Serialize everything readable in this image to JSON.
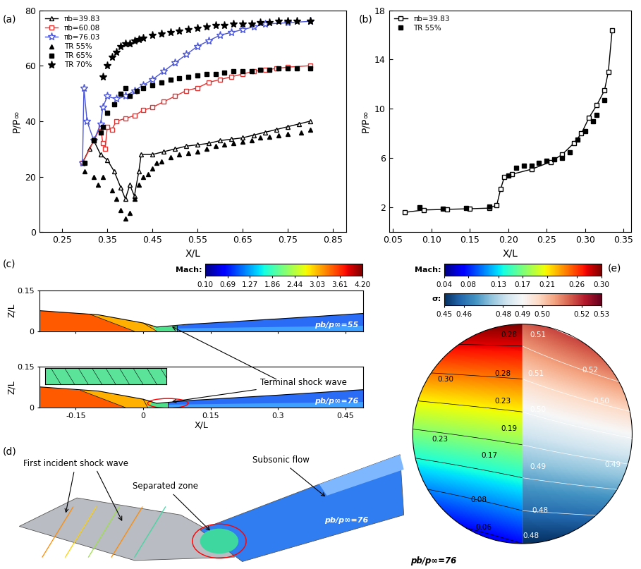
{
  "chart_data": [
    {
      "type": "line",
      "title": "(a)",
      "x_label": "X/L",
      "y_label": "P/P∞",
      "xlim": [
        0.2,
        0.88
      ],
      "xticks": [
        0.25,
        0.35,
        0.45,
        0.55,
        0.65,
        0.75,
        0.85
      ],
      "ylim": [
        0,
        80
      ],
      "yticks": [
        0,
        20,
        40,
        60,
        80
      ],
      "legend": "upper left",
      "series": [
        {
          "name": "πb=39.83",
          "type": "line",
          "color": "#000000",
          "marker": "triangle_open",
          "line_style": "solid",
          "x": [
            0.295,
            0.31,
            0.32,
            0.335,
            0.35,
            0.365,
            0.38,
            0.39,
            0.4,
            0.41,
            0.42,
            0.425,
            0.45,
            0.475,
            0.5,
            0.525,
            0.55,
            0.575,
            0.6,
            0.625,
            0.65,
            0.675,
            0.7,
            0.725,
            0.75,
            0.775,
            0.8
          ],
          "values": [
            25,
            30,
            33,
            28,
            26,
            22,
            16,
            12,
            17,
            13,
            22,
            28,
            28,
            29,
            30,
            31,
            31.5,
            32,
            33,
            33.5,
            34,
            35,
            36,
            37,
            38,
            39,
            40
          ]
        },
        {
          "name": "πb=60.08",
          "type": "line",
          "color": "#e8312f",
          "marker": "square_open",
          "line_style": "solid",
          "x": [
            0.295,
            0.32,
            0.335,
            0.34,
            0.345,
            0.35,
            0.36,
            0.37,
            0.39,
            0.41,
            0.43,
            0.45,
            0.475,
            0.5,
            0.525,
            0.55,
            0.575,
            0.6,
            0.625,
            0.65,
            0.675,
            0.7,
            0.725,
            0.75,
            0.8
          ],
          "values": [
            25,
            33,
            38,
            32,
            30,
            38,
            37,
            40,
            41,
            42,
            44,
            45,
            47,
            49,
            51,
            52,
            54,
            55,
            56,
            57,
            58,
            58.5,
            59,
            59.5,
            60
          ]
        },
        {
          "name": "πb=76.03",
          "type": "line",
          "color": "#4a55d8",
          "marker": "star_open",
          "line_style": "solid",
          "x": [
            0.295,
            0.298,
            0.305,
            0.32,
            0.335,
            0.34,
            0.35,
            0.37,
            0.39,
            0.41,
            0.43,
            0.45,
            0.475,
            0.5,
            0.525,
            0.55,
            0.575,
            0.6,
            0.625,
            0.65,
            0.675,
            0.7,
            0.75,
            0.8
          ],
          "values": [
            25,
            52,
            40,
            33,
            39,
            45,
            49,
            48,
            49,
            51,
            53,
            55,
            58,
            61,
            64,
            67,
            69,
            71,
            72,
            73,
            74,
            75,
            75.5,
            76
          ]
        },
        {
          "name": "TR 55%",
          "type": "scatter",
          "color": "#000000",
          "marker": "triangle",
          "line_style": "none",
          "x": [
            0.3,
            0.32,
            0.33,
            0.34,
            0.36,
            0.37,
            0.38,
            0.39,
            0.4,
            0.41,
            0.42,
            0.43,
            0.44,
            0.45,
            0.46,
            0.47,
            0.49,
            0.51,
            0.53,
            0.55,
            0.57,
            0.59,
            0.61,
            0.63,
            0.65,
            0.67,
            0.69,
            0.71,
            0.73,
            0.75,
            0.78,
            0.8
          ],
          "values": [
            22,
            20,
            17,
            20,
            15,
            12,
            8,
            5,
            7,
            12,
            17,
            20,
            21,
            23,
            25,
            25.5,
            27,
            28,
            28.5,
            29,
            30,
            31,
            31.5,
            32,
            32.5,
            33,
            34,
            34.5,
            35,
            35.5,
            36,
            37
          ]
        },
        {
          "name": "TR 65%",
          "type": "scatter",
          "color": "#000000",
          "marker": "square",
          "line_style": "none",
          "x": [
            0.3,
            0.32,
            0.335,
            0.34,
            0.35,
            0.365,
            0.38,
            0.39,
            0.4,
            0.415,
            0.43,
            0.45,
            0.47,
            0.49,
            0.51,
            0.53,
            0.55,
            0.57,
            0.59,
            0.61,
            0.63,
            0.65,
            0.67,
            0.69,
            0.71,
            0.73,
            0.75,
            0.77,
            0.8
          ],
          "values": [
            25,
            33,
            36,
            38,
            43,
            46,
            50,
            52,
            49,
            51,
            52,
            53,
            54,
            55,
            55.5,
            56,
            56.5,
            57,
            57,
            57.5,
            58,
            58,
            58,
            58.5,
            58.5,
            59,
            59,
            59,
            59
          ]
        },
        {
          "name": "TR 70%",
          "type": "scatter",
          "color": "#000000",
          "marker": "star",
          "line_style": "none",
          "x": [
            0.34,
            0.35,
            0.36,
            0.37,
            0.38,
            0.39,
            0.4,
            0.41,
            0.42,
            0.43,
            0.45,
            0.47,
            0.49,
            0.51,
            0.53,
            0.55,
            0.57,
            0.59,
            0.61,
            0.63,
            0.65,
            0.67,
            0.69,
            0.71,
            0.73,
            0.75,
            0.77,
            0.8
          ],
          "values": [
            56,
            60,
            63,
            65,
            67,
            68,
            68,
            69,
            69.5,
            70,
            71,
            71.5,
            72,
            72.5,
            73,
            73.5,
            74,
            74.5,
            74.5,
            75,
            75,
            75,
            75.5,
            75.5,
            76,
            76,
            76,
            76
          ]
        }
      ]
    },
    {
      "type": "line",
      "title": "(b)",
      "x_label": "X/L",
      "y_label": "P/P∞",
      "xlim": [
        0.045,
        0.36
      ],
      "xticks": [
        0.05,
        {
          "value": 0.1,
          "label": "0.10"
        },
        0.15,
        {
          "value": 0.2,
          "label": "0.20"
        },
        0.25,
        {
          "value": 0.3,
          "label": "0.30"
        },
        0.35
      ],
      "ylim": [
        0,
        18
      ],
      "yticks": [
        2,
        6,
        10,
        14,
        18
      ],
      "legend": "upper left",
      "series": [
        {
          "name": "πb=39.83",
          "type": "line",
          "color": "#000000",
          "marker": "square_open",
          "line_style": "solid",
          "x": [
            0.065,
            0.09,
            0.12,
            0.15,
            0.175,
            0.185,
            0.19,
            0.195,
            0.205,
            0.23,
            0.255,
            0.27,
            0.285,
            0.295,
            0.305,
            0.315,
            0.325,
            0.33,
            0.335
          ],
          "values": [
            1.6,
            1.8,
            1.85,
            1.9,
            1.95,
            2.2,
            3.5,
            4.5,
            4.7,
            5.1,
            5.7,
            6.3,
            7.2,
            8.0,
            9.3,
            10.3,
            11.5,
            13,
            16.4
          ]
        },
        {
          "name": "TR 55%",
          "type": "scatter",
          "color": "#000000",
          "marker": "square",
          "line_style": "none",
          "x": [
            0.085,
            0.115,
            0.145,
            0.175,
            0.2,
            0.21,
            0.22,
            0.23,
            0.24,
            0.25,
            0.26,
            0.27,
            0.28,
            0.29,
            0.3,
            0.31,
            0.315,
            0.325
          ],
          "values": [
            2.0,
            1.9,
            1.95,
            2.05,
            4.6,
            5.2,
            5.4,
            5.4,
            5.6,
            5.8,
            5.9,
            6.0,
            6.5,
            7.5,
            8.2,
            9.0,
            9.5,
            10.7
          ]
        }
      ]
    },
    {
      "type": "contour",
      "title": "(c)",
      "x_label": "X/L",
      "y_label": "Z/L",
      "xlim": [
        -0.23,
        0.49
      ],
      "xticks": [
        -0.15,
        0,
        0.15,
        0.3,
        0.45
      ],
      "ylim": [
        0,
        0.15
      ],
      "yticks": [
        0,
        0.15
      ],
      "colorbar": {
        "label": "Mach:",
        "range": [
          0.1,
          4.2
        ],
        "ticks": [
          {
            "value": 0.1,
            "label": "0.10"
          },
          0.69,
          1.27,
          1.86,
          2.44,
          3.03,
          3.61,
          {
            "value": 4.2,
            "label": "4.20"
          }
        ]
      },
      "subplots": [
        {
          "label": "pb/p∞=55"
        },
        {
          "label": "pb/p∞=76"
        }
      ],
      "annotation": "Terminal shock wave"
    },
    {
      "type": "diagram",
      "title": "(d)",
      "labels": {
        "shock": "First incident shock wave",
        "separated": "Separated zone",
        "subsonic": "Subsonic flow",
        "condition": "pb/p∞=76"
      }
    },
    {
      "type": "disk",
      "title": "(e)",
      "colorbars": [
        {
          "label": "Mach:",
          "range": [
            0.04,
            0.3
          ],
          "ticks": [
            0.04,
            0.08,
            0.13,
            0.17,
            0.21,
            0.26,
            {
              "value": 0.3,
              "label": "0.30"
            }
          ]
        },
        {
          "label": "σ:",
          "range": [
            0.45,
            0.53
          ],
          "ticks": [
            0.45,
            0.46,
            0.48,
            0.49,
            {
              "value": 0.5,
              "label": "0.50"
            },
            0.52,
            0.53
          ]
        }
      ],
      "contour_labels_left": [
        "0.28",
        "0.30",
        "0.28",
        "0.23",
        "0.19",
        "0.23",
        "0.17",
        "0.08",
        "0.06"
      ],
      "contour_labels_right": [
        "0.51",
        "0.51",
        "0.52",
        "0.50",
        "0.50",
        "0.49",
        "0.49",
        "0.48",
        "0.48"
      ],
      "condition": "pb/p∞=76"
    }
  ]
}
